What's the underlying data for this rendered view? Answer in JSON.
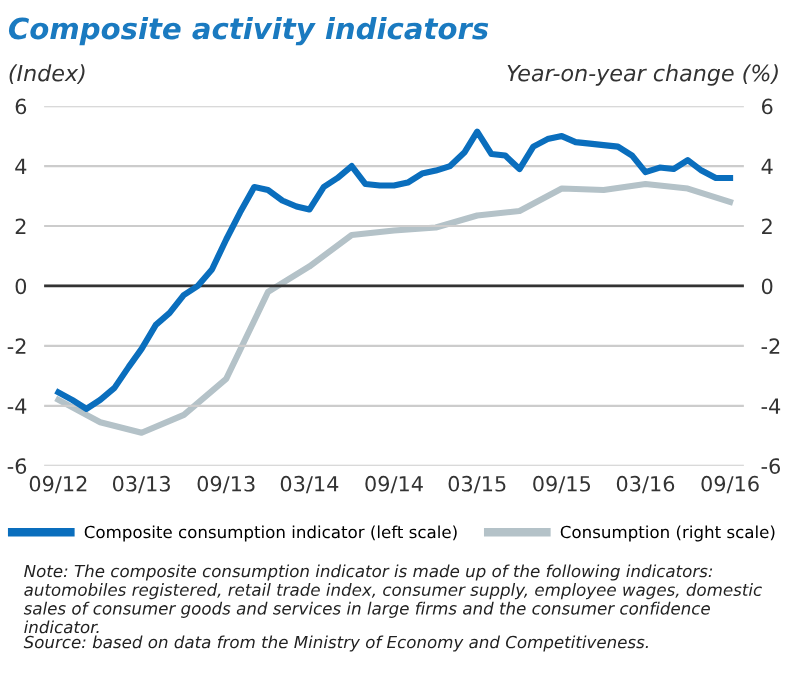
{
  "chart_data": {
    "type": "line",
    "title": "Composite activity indicators",
    "ylabel": "(Index)",
    "y2label": "Year-on-year change (%)",
    "annotations": [
      "Note: The composite consumption indicator is made up of the following indicators: automobiles registered, retail trade index, consumer supply, employee wages, domestic sales of consumer goods and services in large firms and the consumer confidence indicator.",
      "Source: based on data from the Ministry of Economy and Competitiveness."
    ],
    "series": [
      {
        "name": "Composite consumption indicator (left scale)",
        "color": "#0a6ebd",
        "x": [
          "2012-09",
          "2012-10",
          "2012-11",
          "2012-12",
          "2013-01",
          "2013-02",
          "2013-03",
          "2013-04",
          "2013-05",
          "2013-06",
          "2013-07",
          "2013-08",
          "2013-09",
          "2013-10",
          "2013-11",
          "2013-12",
          "2014-01",
          "2014-02",
          "2014-03",
          "2014-04",
          "2014-05",
          "2014-06",
          "2014-07",
          "2014-08",
          "2014-09",
          "2014-10",
          "2014-11",
          "2014-12",
          "2015-01",
          "2015-02",
          "2015-03",
          "2015-04",
          "2015-05",
          "2015-06",
          "2015-07",
          "2015-08",
          "2015-09",
          "2015-10",
          "2015-11",
          "2015-12",
          "2016-01",
          "2016-02",
          "2016-03",
          "2016-04",
          "2016-05",
          "2016-06",
          "2016-07",
          "2016-08",
          "2016-09"
        ],
        "values": [
          -3.55,
          -3.8,
          -4.1,
          -3.8,
          -3.4,
          -2.7,
          -2.1,
          -1.3,
          -0.9,
          -0.3,
          0,
          0.55,
          1.55,
          2.45,
          3.3,
          3.2,
          2.85,
          2.65,
          2.55,
          3.3,
          3.6,
          4.0,
          3.4,
          3.35,
          3.35,
          3.45,
          3.75,
          3.85,
          4.0,
          4.45,
          5.15,
          4.4,
          4.35,
          3.9,
          4.65,
          4.9,
          5.0,
          4.8,
          4.75,
          4.7,
          4.65,
          4.35,
          3.8,
          3.95,
          3.9,
          4.2,
          3.85,
          3.6,
          3.6
        ]
      },
      {
        "name": "Consumption (right scale)",
        "color": "#b4c2c8",
        "axis": "y2",
        "x": [
          "2012-09",
          "2012-12",
          "2013-03",
          "2013-06",
          "2013-09",
          "2013-12",
          "2014-03",
          "2014-06",
          "2014-09",
          "2014-12",
          "2015-03",
          "2015-06",
          "2015-09",
          "2015-12",
          "2016-03",
          "2016-06",
          "2016-09"
        ],
        "values": [
          -3.8,
          -4.55,
          -4.9,
          -4.3,
          -3.1,
          -0.2,
          0.65,
          1.7,
          1.85,
          1.95,
          2.35,
          2.5,
          3.25,
          3.2,
          3.4,
          3.25,
          2.8
        ]
      }
    ],
    "xlim": [
      "2012-08",
      "2016-10"
    ],
    "xticks": [
      {
        "value": "2012-09",
        "label": "09/12"
      },
      {
        "value": "2013-03",
        "label": "03/13"
      },
      {
        "value": "2013-09",
        "label": "09/13"
      },
      {
        "value": "2014-03",
        "label": "03/14"
      },
      {
        "value": "2014-09",
        "label": "09/14"
      },
      {
        "value": "2015-03",
        "label": "03/15"
      },
      {
        "value": "2015-09",
        "label": "09/15"
      },
      {
        "value": "2016-03",
        "label": "03/16"
      },
      {
        "value": "2016-09",
        "label": "09/16"
      }
    ],
    "ylim": [
      -6,
      6
    ],
    "yticks": [
      -6,
      -4,
      -2,
      0,
      2,
      4,
      6
    ],
    "y2lim": [
      -6,
      6
    ],
    "y2ticks": [
      -6,
      -4,
      -2,
      0,
      2,
      4,
      6
    ],
    "ref_lines": [
      {
        "axis": "y",
        "value": 0,
        "color": "#333333"
      }
    ],
    "grid": "y",
    "legend": "bottom",
    "marker": "none",
    "line_style": "solid"
  }
}
